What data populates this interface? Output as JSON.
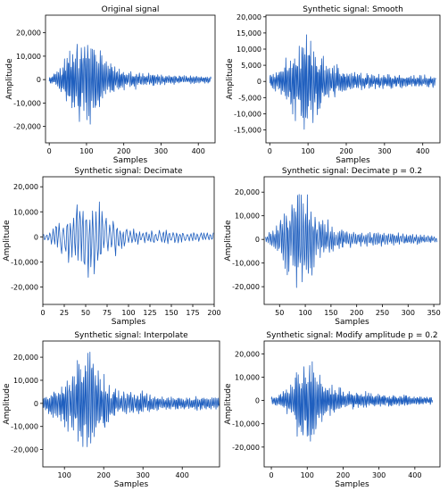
{
  "chart_data": [
    {
      "type": "line",
      "title": "Original signal",
      "xlabel": "Samples",
      "ylabel": "Amplitude",
      "xlim": [
        -10,
        445
      ],
      "ylim": [
        -27000,
        27500
      ],
      "xticks": [
        0,
        100,
        200,
        300,
        400
      ],
      "xtick_labels": [
        "0",
        "100",
        "200",
        "300",
        "400"
      ],
      "yticks": [
        -20000,
        -10000,
        0,
        10000,
        20000
      ],
      "ytick_labels": [
        "-20,000",
        "-10,000",
        "0",
        "10,000",
        "20,000"
      ],
      "color": "#1f5fbf",
      "series": [
        {
          "x_start": 0,
          "x_step": 1,
          "n_points": 435,
          "envelope_x": [
            0,
            20,
            40,
            60,
            80,
            100,
            115,
            130,
            150,
            175,
            200,
            250,
            300,
            350,
            435
          ],
          "envelope_y": [
            1500,
            3500,
            9000,
            14000,
            19000,
            24500,
            20000,
            15000,
            9000,
            6000,
            4000,
            3000,
            2500,
            2000,
            1500
          ]
        }
      ]
    },
    {
      "type": "line",
      "title": "Synthetic signal: Smooth",
      "xlabel": "Samples",
      "ylabel": "Amplitude",
      "xlim": [
        -10,
        445
      ],
      "ylim": [
        -19000,
        20500
      ],
      "xticks": [
        0,
        100,
        200,
        300,
        400
      ],
      "xtick_labels": [
        "0",
        "100",
        "200",
        "300",
        "400"
      ],
      "yticks": [
        -15000,
        -10000,
        -5000,
        0,
        5000,
        10000,
        15000,
        20000
      ],
      "ytick_labels": [
        "-15,000",
        "-10,000",
        "-5,000",
        "0",
        "5,000",
        "10,000",
        "15,000",
        "20,000"
      ],
      "color": "#1f5fbf",
      "series": [
        {
          "x_start": 0,
          "x_step": 1,
          "n_points": 435,
          "envelope_x": [
            0,
            20,
            40,
            60,
            80,
            95,
            110,
            130,
            150,
            175,
            200,
            250,
            300,
            350,
            435
          ],
          "envelope_y": [
            2000,
            3500,
            7000,
            11000,
            16000,
            18500,
            15000,
            11000,
            7000,
            5000,
            3500,
            2500,
            2500,
            2000,
            2000
          ]
        }
      ]
    },
    {
      "type": "line",
      "title": "Synthetic signal: Decimate",
      "xlabel": "Samples",
      "ylabel": "Amplitude",
      "xlim": [
        0,
        200
      ],
      "ylim": [
        -27000,
        24000
      ],
      "xticks": [
        0,
        25,
        50,
        75,
        100,
        125,
        150,
        175,
        200
      ],
      "xtick_labels": [
        "0",
        "25",
        "50",
        "75",
        "100",
        "125",
        "150",
        "175",
        "200"
      ],
      "yticks": [
        -20000,
        -10000,
        0,
        10000,
        20000
      ],
      "ytick_labels": [
        "-20,000",
        "-10,000",
        "0",
        "10,000",
        "20,000"
      ],
      "color": "#1f5fbf",
      "series": [
        {
          "x_start": 0,
          "x_step": 1,
          "n_points": 200,
          "envelope_x": [
            0,
            10,
            20,
            30,
            40,
            50,
            57,
            65,
            75,
            90,
            100,
            125,
            150,
            175,
            200
          ],
          "envelope_y": [
            1500,
            3000,
            7000,
            12000,
            17000,
            21000,
            25000,
            16000,
            9000,
            6000,
            4000,
            3000,
            3000,
            2500,
            2000
          ]
        }
      ]
    },
    {
      "type": "line",
      "title": "Synthetic signal: Decimate p = 0.2",
      "xlabel": "Samples",
      "ylabel": "Amplitude",
      "xlim": [
        20,
        362
      ],
      "ylim": [
        -27500,
        26500
      ],
      "xticks": [
        50,
        100,
        150,
        200,
        250,
        300,
        350
      ],
      "xtick_labels": [
        "50",
        "100",
        "150",
        "200",
        "250",
        "300",
        "350"
      ],
      "yticks": [
        -20000,
        -10000,
        0,
        10000,
        20000
      ],
      "ytick_labels": [
        "-20,000",
        "-10,000",
        "0",
        "10,000",
        "20,000"
      ],
      "color": "#1f5fbf",
      "series": [
        {
          "x_start": 22,
          "x_step": 1,
          "n_points": 335,
          "envelope_x": [
            22,
            40,
            55,
            70,
            85,
            95,
            110,
            125,
            150,
            175,
            200,
            250,
            300,
            356
          ],
          "envelope_y": [
            1500,
            5000,
            12000,
            18000,
            22000,
            24000,
            18000,
            11000,
            7000,
            4500,
            3500,
            3000,
            2500,
            1500
          ]
        }
      ]
    },
    {
      "type": "line",
      "title": "Synthetic signal: Interpolate",
      "xlabel": "Samples",
      "ylabel": "Amplitude",
      "xlim": [
        45,
        495
      ],
      "ylim": [
        -27500,
        27000
      ],
      "xticks": [
        100,
        200,
        300,
        400
      ],
      "xtick_labels": [
        "100",
        "200",
        "300",
        "400"
      ],
      "yticks": [
        -20000,
        -10000,
        0,
        10000,
        20000
      ],
      "ytick_labels": [
        "-20,000",
        "-10,000",
        "0",
        "10,000",
        "20,000"
      ],
      "color": "#1f5fbf",
      "series": [
        {
          "x_start": 45,
          "x_step": 1,
          "n_points": 450,
          "envelope_x": [
            45,
            70,
            95,
            120,
            145,
            165,
            180,
            200,
            225,
            250,
            300,
            350,
            400,
            495
          ],
          "envelope_y": [
            3500,
            6000,
            10000,
            15000,
            20000,
            24500,
            18000,
            13000,
            8000,
            6000,
            4500,
            3500,
            3000,
            3500
          ]
        }
      ]
    },
    {
      "type": "line",
      "title": "Synthetic signal: Modify amplitude p = 0.2",
      "xlabel": "Samples",
      "ylabel": "Amplitude",
      "xlim": [
        -20,
        470
      ],
      "ylim": [
        -28500,
        25500
      ],
      "xticks": [
        0,
        100,
        200,
        300,
        400
      ],
      "xtick_labels": [
        "0",
        "100",
        "200",
        "300",
        "400"
      ],
      "yticks": [
        -20000,
        -10000,
        0,
        10000,
        20000
      ],
      "ytick_labels": [
        "-20,000",
        "-10,000",
        "0",
        "10,000",
        "20,000"
      ],
      "color": "#1f5fbf",
      "series": [
        {
          "x_start": 0,
          "x_step": 1,
          "n_points": 450,
          "envelope_x": [
            0,
            25,
            50,
            70,
            90,
            105,
            120,
            140,
            165,
            200,
            250,
            300,
            350,
            450
          ],
          "envelope_y": [
            1500,
            3000,
            7000,
            13000,
            19000,
            24000,
            17000,
            11000,
            7000,
            5000,
            3500,
            3000,
            2500,
            2000
          ]
        }
      ]
    }
  ]
}
